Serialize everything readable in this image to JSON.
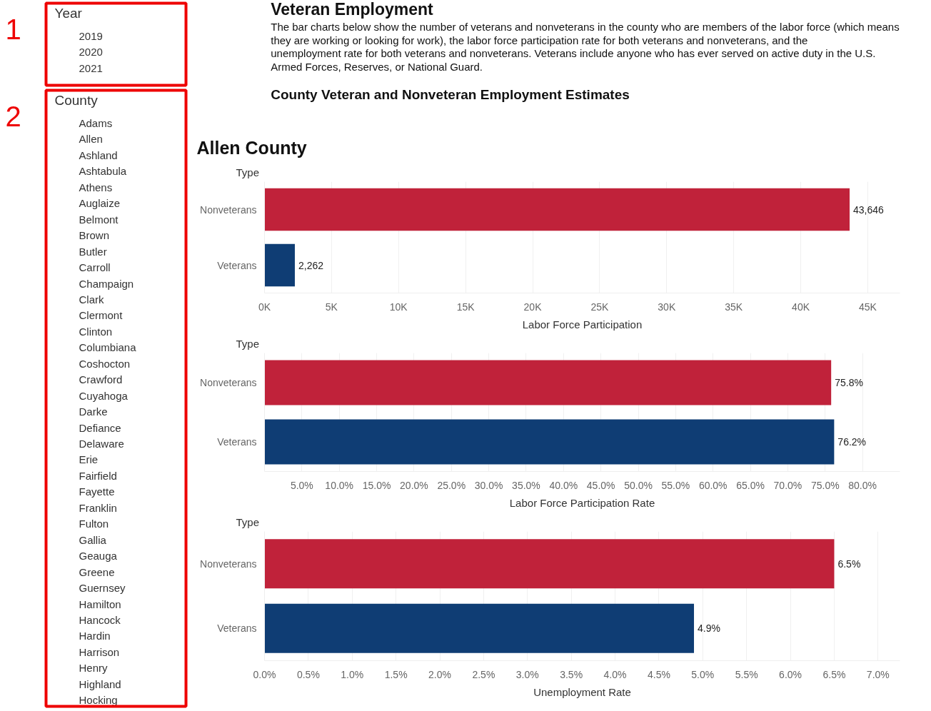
{
  "chart_data": [
    {
      "type": "other",
      "title": "Year",
      "categories": [
        "2019",
        "2020",
        "2021"
      ],
      "annotations": [
        "1"
      ]
    },
    {
      "type": "other",
      "title": "County",
      "categories": [
        "Adams",
        "Allen",
        "Ashland",
        "Ashtabula",
        "Athens",
        "Auglaize",
        "Belmont",
        "Brown",
        "Butler",
        "Carroll",
        "Champaign",
        "Clark",
        "Clermont",
        "Clinton",
        "Columbiana",
        "Coshocton",
        "Crawford",
        "Cuyahoga",
        "Darke",
        "Defiance",
        "Delaware",
        "Erie",
        "Fairfield",
        "Fayette",
        "Franklin",
        "Fulton",
        "Gallia",
        "Geauga",
        "Greene",
        "Guernsey",
        "Hamilton",
        "Hancock",
        "Hardin",
        "Harrison",
        "Henry",
        "Highland",
        "Hocking"
      ],
      "annotations": [
        "2"
      ]
    },
    {
      "type": "other",
      "title": "Veteran Employment",
      "subtitle": "The bar charts below show the number of veterans and nonveterans in the county who are members of the labor force (which means they are working or looking for work), the labor force participation rate for both veterans and nonveterans, and the unemployment rate for both veterans and nonveterans. Veterans include anyone who has ever served on active duty in the U.S. Armed Forces, Reserves, or National Guard.",
      "annotations": [
        "County Veteran and Nonveteran Employment Estimates"
      ]
    },
    {
      "type": "bar",
      "orientation": "horizontal",
      "title": "Allen County",
      "ylabel": "Type",
      "xlabel": "Labor Force Participation",
      "categories": [
        "Nonveterans",
        "Veterans"
      ],
      "values": [
        43646,
        2262
      ],
      "colors": [
        "#c0223a",
        "#0f3d74"
      ],
      "value_labels": [
        "43,646",
        "2,262"
      ],
      "xlim": [
        0,
        47400
      ],
      "xticks": [
        {
          "value": 0,
          "label": "0K"
        },
        {
          "value": 5000,
          "label": "5K"
        },
        {
          "value": 10000,
          "label": "10K"
        },
        {
          "value": 15000,
          "label": "15K"
        },
        {
          "value": 20000,
          "label": "20K"
        },
        {
          "value": 25000,
          "label": "25K"
        },
        {
          "value": 30000,
          "label": "30K"
        },
        {
          "value": 35000,
          "label": "35K"
        },
        {
          "value": 40000,
          "label": "40K"
        },
        {
          "value": 45000,
          "label": "45K"
        }
      ],
      "grid": "x"
    },
    {
      "type": "bar",
      "orientation": "horizontal",
      "ylabel": "Type",
      "xlabel": "Labor Force Participation Rate",
      "categories": [
        "Nonveterans",
        "Veterans"
      ],
      "values": [
        75.8,
        76.2
      ],
      "colors": [
        "#c0223a",
        "#0f3d74"
      ],
      "value_labels": [
        "75.8%",
        "76.2%"
      ],
      "xlim": [
        0,
        85
      ],
      "xticks": [
        {
          "value": 5,
          "label": "5.0%"
        },
        {
          "value": 10,
          "label": "10.0%"
        },
        {
          "value": 15,
          "label": "15.0%"
        },
        {
          "value": 20,
          "label": "20.0%"
        },
        {
          "value": 25,
          "label": "25.0%"
        },
        {
          "value": 30,
          "label": "30.0%"
        },
        {
          "value": 35,
          "label": "35.0%"
        },
        {
          "value": 40,
          "label": "40.0%"
        },
        {
          "value": 45,
          "label": "45.0%"
        },
        {
          "value": 50,
          "label": "50.0%"
        },
        {
          "value": 55,
          "label": "55.0%"
        },
        {
          "value": 60,
          "label": "60.0%"
        },
        {
          "value": 65,
          "label": "65.0%"
        },
        {
          "value": 70,
          "label": "70.0%"
        },
        {
          "value": 75,
          "label": "75.0%"
        },
        {
          "value": 80,
          "label": "80.0%"
        }
      ],
      "grid": "x"
    },
    {
      "type": "bar",
      "orientation": "horizontal",
      "ylabel": "Type",
      "xlabel": "Unemployment Rate",
      "categories": [
        "Nonveterans",
        "Veterans"
      ],
      "values": [
        6.5,
        4.9
      ],
      "colors": [
        "#c0223a",
        "#0f3d74"
      ],
      "value_labels": [
        "6.5%",
        "4.9%"
      ],
      "xlim": [
        0,
        7.25
      ],
      "xticks": [
        {
          "value": 0,
          "label": "0.0%"
        },
        {
          "value": 0.5,
          "label": "0.5%"
        },
        {
          "value": 1,
          "label": "1.0%"
        },
        {
          "value": 1.5,
          "label": "1.5%"
        },
        {
          "value": 2,
          "label": "2.0%"
        },
        {
          "value": 2.5,
          "label": "2.5%"
        },
        {
          "value": 3,
          "label": "3.0%"
        },
        {
          "value": 3.5,
          "label": "3.5%"
        },
        {
          "value": 4,
          "label": "4.0%"
        },
        {
          "value": 4.5,
          "label": "4.5%"
        },
        {
          "value": 5,
          "label": "5.0%"
        },
        {
          "value": 5.5,
          "label": "5.5%"
        },
        {
          "value": 6,
          "label": "6.0%"
        },
        {
          "value": 6.5,
          "label": "6.5%"
        },
        {
          "value": 7,
          "label": "7.0%"
        }
      ],
      "grid": "x"
    }
  ]
}
